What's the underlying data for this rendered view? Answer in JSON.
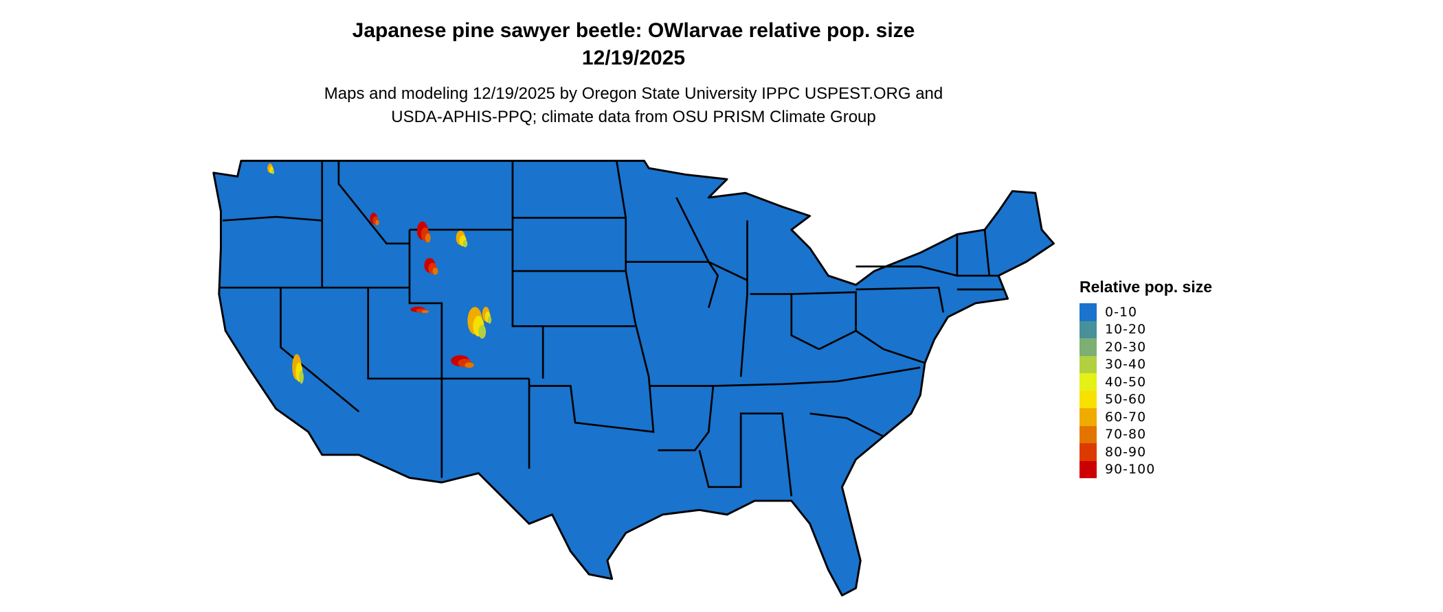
{
  "title": {
    "line1": "Japanese pine sawyer beetle: OWlarvae relative pop. size",
    "line2": "12/19/2025"
  },
  "subtitle": {
    "line1": "Maps and modeling 12/19/2025 by Oregon State University IPPC USPEST.ORG and",
    "line2": "USDA-APHIS-PPQ; climate data from OSU PRISM Climate Group"
  },
  "map": {
    "region": "Contiguous United States",
    "base_color": "#1a73cc",
    "border_color": "#000000",
    "hotspot_colors": [
      "#cc0000",
      "#dd3300",
      "#e37400",
      "#f0aa00",
      "#f5e000",
      "#b2d040"
    ]
  },
  "legend": {
    "title": "Relative pop. size",
    "items": [
      {
        "label": "0-10",
        "color": "#1a73cc"
      },
      {
        "label": "10-20",
        "color": "#48909a"
      },
      {
        "label": "20-30",
        "color": "#7dae74"
      },
      {
        "label": "30-40",
        "color": "#b2d040"
      },
      {
        "label": "40-50",
        "color": "#e5f016"
      },
      {
        "label": "50-60",
        "color": "#f8e000"
      },
      {
        "label": "60-70",
        "color": "#f0aa00"
      },
      {
        "label": "70-80",
        "color": "#e37400"
      },
      {
        "label": "80-90",
        "color": "#dd3a00"
      },
      {
        "label": "90-100",
        "color": "#cc0000"
      }
    ]
  }
}
